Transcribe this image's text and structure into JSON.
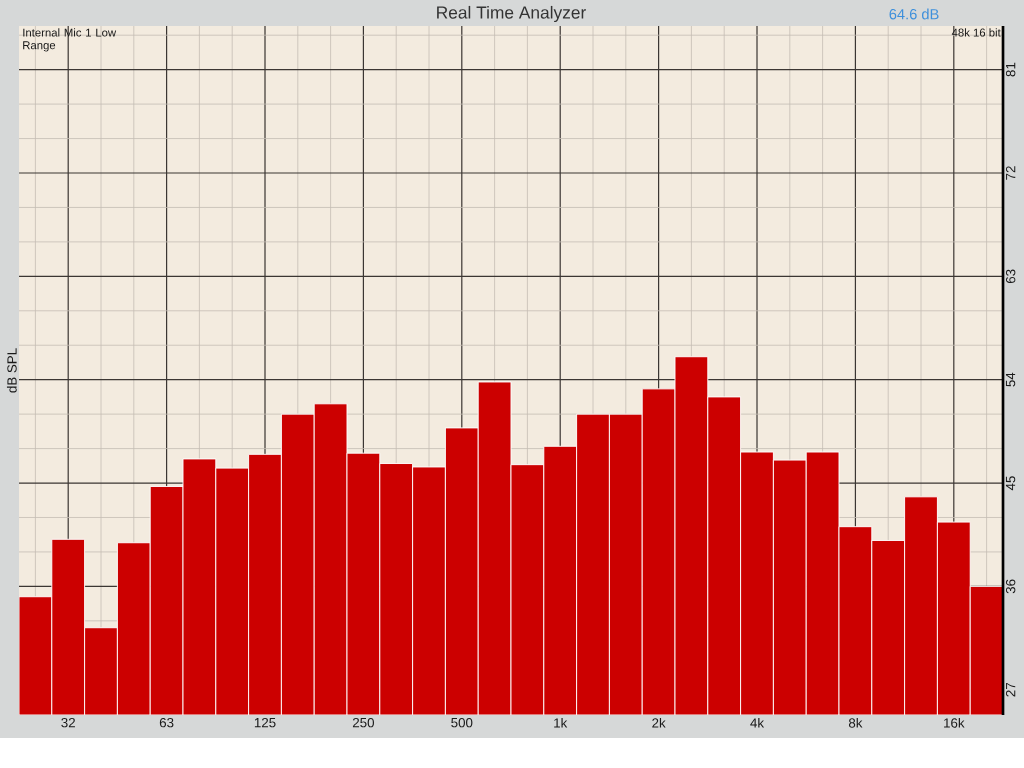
{
  "chart_data": {
    "type": "bar",
    "title": "Real Time Analyzer",
    "ylabel": "dB SPL",
    "annotations": [
      "64.6 dB",
      "Internal Mic 1 Low Range",
      "48k 16 bit"
    ],
    "categories": [
      null,
      "32",
      null,
      null,
      "63",
      null,
      null,
      "125",
      null,
      null,
      "250",
      null,
      null,
      "500",
      null,
      null,
      "1k",
      null,
      null,
      "2k",
      null,
      null,
      "4k",
      null,
      null,
      "8k",
      null,
      null,
      "16k",
      null
    ],
    "values": [
      35.1,
      40.1,
      32.4,
      39.8,
      44.7,
      47.1,
      46.3,
      47.5,
      51.0,
      51.9,
      47.6,
      46.7,
      46.4,
      49.8,
      53.8,
      46.6,
      48.2,
      51.0,
      51.0,
      53.2,
      56.0,
      52.5,
      47.7,
      47.0,
      47.7,
      41.2,
      40.0,
      43.8,
      41.6,
      36.0
    ],
    "color": "#cc0000",
    "ylim": [
      24.8,
      84.8
    ],
    "yticks": [
      27,
      36,
      45,
      54,
      63,
      72,
      81
    ],
    "grid": true
  }
}
